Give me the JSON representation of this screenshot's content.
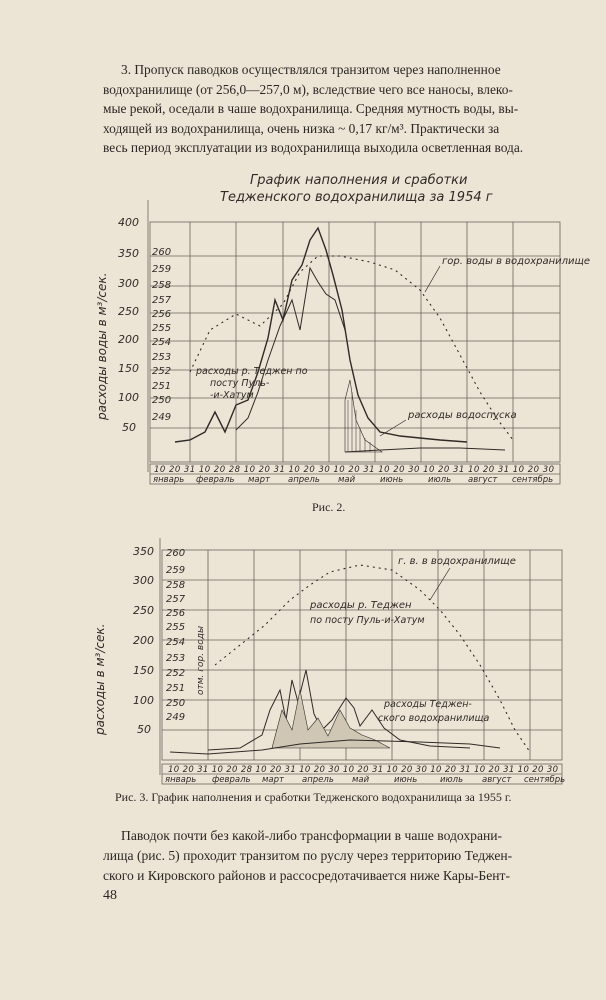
{
  "paragraph_top": [
    "3. Пропуск паводков осуществлялся транзитом через наполненное",
    "водохранилище (от 256,0—257,0 м), вследствие чего все наносы, влеко-",
    "мые рекой, оседали в чаше водохранилища. Средняя мутность воды, вы-",
    "ходящей из водохранилища, очень низка ~ 0,17 кг/м³. Практически за",
    "весь период эксплуатации из водохранилища выходила осветленная вода."
  ],
  "figure2": {
    "title_line1": "График наполнения и сработки",
    "title_line2": "Теджен­ского водохранилища за 1954 г",
    "caption": "Рис. 2.",
    "ylabel": "расходы воды в м³/сек.",
    "flow_ticks": [
      "400",
      "350",
      "300",
      "250",
      "200",
      "150",
      "100",
      "50"
    ],
    "level_ticks": [
      "260",
      "259",
      "258",
      "257",
      "256",
      "255",
      "254",
      "253",
      "252",
      "251",
      "250",
      "249"
    ],
    "annotation_level": "гор. воды в водохранилище",
    "annotation_inflow_1": "расходы р. Теджен по",
    "annotation_inflow_2": "посту Пуль-",
    "annotation_inflow_3": "-и-Хатум",
    "annotation_release": "расходы водоспуска",
    "day_ticks": "10 20 31 10 20 28 10 20 31 10 20 30 10 20 31 10 20 30 10 20 31 10 20 31 10 20 30",
    "months": [
      "январь",
      "февраль",
      "март",
      "апрель",
      "май",
      "июнь",
      "июль",
      "август",
      "сентябрь"
    ]
  },
  "figure3": {
    "caption": "Рис. 3. График наполнения и сработки Тедженского водохранилища за 1955 г.",
    "ylabel": "расходы в м³/сек.",
    "level_label": "отм. гор. воды",
    "flow_ticks": [
      "350",
      "300",
      "250",
      "200",
      "150",
      "100",
      "50"
    ],
    "level_ticks": [
      "260",
      "259",
      "258",
      "257",
      "256",
      "255",
      "254",
      "253",
      "252",
      "251",
      "250",
      "249"
    ],
    "annotation_level": "г. в. в водохранилище",
    "annotation_inflow_1": "расходы р. Теджен",
    "annotation_inflow_2": "по посту Пуль-и-Хатум",
    "annotation_release_1": "расходы Теджен-",
    "annotation_release_2": "ского водохранилища",
    "day_ticks": "10 20 31 10 20 28 10 20 31 10 20 30 10 20 31 10 20 30 10 20 31 10 20 31 10 20 30",
    "months": [
      "январь",
      "февраль",
      "март",
      "апрель",
      "май",
      "июнь",
      "июль",
      "август",
      "сентябрь"
    ]
  },
  "paragraph_bottom": [
    "Паводок почти без какой-либо трансформации в чаше водохрани-",
    "лища (рис. 5) проходит транзитом по руслу через территорию Теджен-",
    "ского и Кировского районов и рассосредотачивается ниже Кары-Бент-"
  ],
  "page_number": "48"
}
